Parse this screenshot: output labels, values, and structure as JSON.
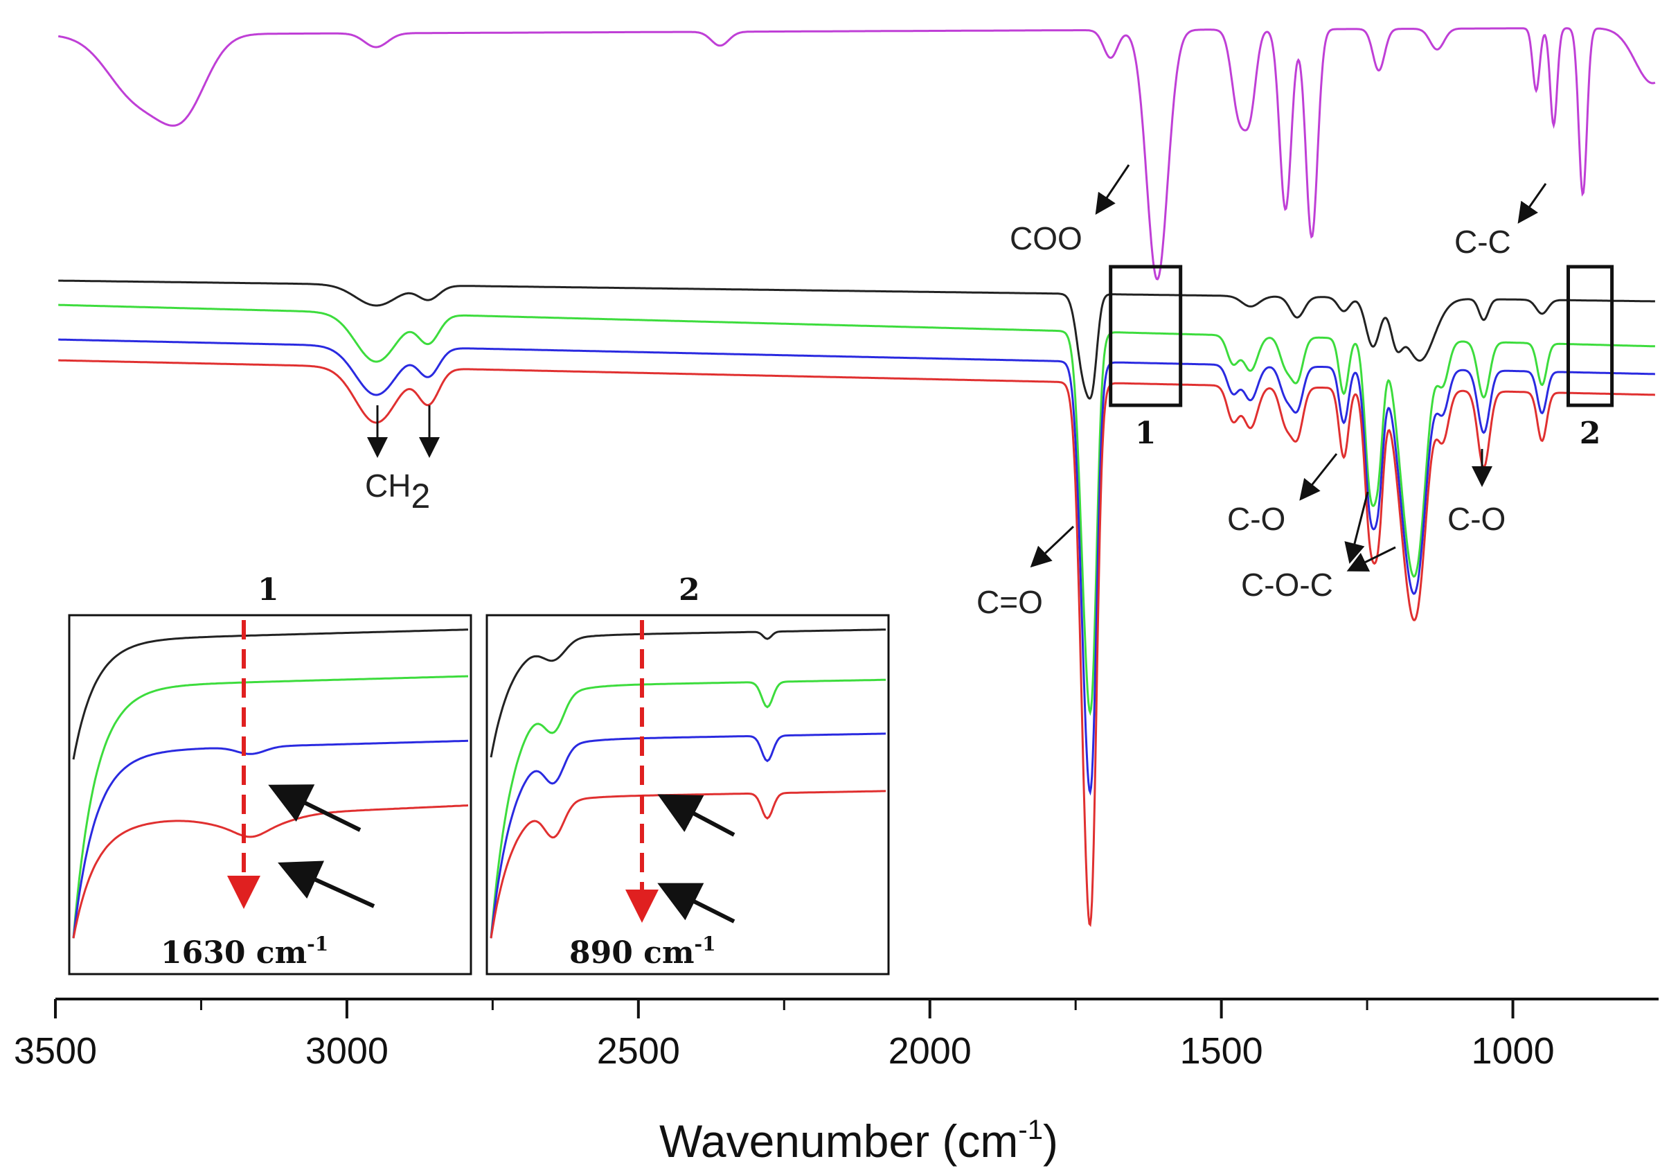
{
  "chart_data": {
    "type": "line",
    "title": "",
    "xlabel": "Wavenumber (cm",
    "xlabel_sup": "-1",
    "xlabel_tail": ")",
    "ylabel": "",
    "xlim": [
      3500,
      750
    ],
    "x_ticks": [
      3500,
      3000,
      2500,
      2000,
      1500,
      1000
    ],
    "x_tick_labels": [
      "3500",
      "3000",
      "2500",
      "2000",
      "1500",
      "1000"
    ],
    "series": [
      {
        "name": "magenta",
        "color": "#bf3fd6",
        "baseline": 0.03,
        "slope": -0.01,
        "bands": [
          [
            3360,
            0.09,
            50
          ],
          [
            3280,
            0.1,
            40
          ],
          [
            2950,
            0.02,
            20
          ],
          [
            2360,
            0.02,
            15
          ],
          [
            1690,
            0.04,
            12
          ],
          [
            1610,
            0.36,
            18
          ],
          [
            1470,
            0.12,
            12
          ],
          [
            1450,
            0.1,
            10
          ],
          [
            1390,
            0.26,
            10
          ],
          [
            1345,
            0.3,
            10
          ],
          [
            1230,
            0.06,
            10
          ],
          [
            1130,
            0.03,
            12
          ],
          [
            960,
            0.09,
            6
          ],
          [
            930,
            0.14,
            6
          ],
          [
            880,
            0.24,
            7
          ],
          [
            760,
            0.08,
            30
          ]
        ]
      },
      {
        "name": "black",
        "color": "#222222",
        "baseline": 0.385,
        "slope": 0.03,
        "bands": [
          [
            2950,
            0.03,
            35
          ],
          [
            2860,
            0.02,
            18
          ],
          [
            1735,
            0.12,
            12
          ],
          [
            1720,
            0.08,
            8
          ],
          [
            1450,
            0.015,
            15
          ],
          [
            1370,
            0.03,
            12
          ],
          [
            1290,
            0.02,
            10
          ],
          [
            1240,
            0.07,
            12
          ],
          [
            1200,
            0.05,
            10
          ],
          [
            1160,
            0.09,
            25
          ],
          [
            1050,
            0.03,
            8
          ],
          [
            950,
            0.02,
            10
          ]
        ]
      },
      {
        "name": "green",
        "color": "#3ddc3d",
        "baseline": 0.42,
        "slope": 0.06,
        "bands": [
          [
            2950,
            0.07,
            35
          ],
          [
            2860,
            0.04,
            18
          ],
          [
            1730,
            0.42,
            12
          ],
          [
            1720,
            0.2,
            8
          ],
          [
            1480,
            0.04,
            10
          ],
          [
            1450,
            0.05,
            12
          ],
          [
            1390,
            0.04,
            10
          ],
          [
            1370,
            0.06,
            10
          ],
          [
            1290,
            0.08,
            8
          ],
          [
            1245,
            0.2,
            9
          ],
          [
            1230,
            0.15,
            8
          ],
          [
            1180,
            0.23,
            18
          ],
          [
            1160,
            0.18,
            15
          ],
          [
            1120,
            0.06,
            10
          ],
          [
            1050,
            0.08,
            10
          ],
          [
            950,
            0.06,
            8
          ]
        ]
      },
      {
        "name": "blue",
        "color": "#2a2ae0",
        "baseline": 0.47,
        "slope": 0.05,
        "bands": [
          [
            2950,
            0.07,
            35
          ],
          [
            2860,
            0.04,
            18
          ],
          [
            1730,
            0.48,
            12
          ],
          [
            1720,
            0.22,
            8
          ],
          [
            1480,
            0.04,
            10
          ],
          [
            1450,
            0.05,
            12
          ],
          [
            1390,
            0.04,
            10
          ],
          [
            1370,
            0.06,
            10
          ],
          [
            1290,
            0.08,
            8
          ],
          [
            1245,
            0.19,
            9
          ],
          [
            1230,
            0.15,
            8
          ],
          [
            1180,
            0.22,
            18
          ],
          [
            1160,
            0.17,
            15
          ],
          [
            1120,
            0.06,
            10
          ],
          [
            1050,
            0.09,
            10
          ],
          [
            950,
            0.06,
            8
          ]
        ]
      },
      {
        "name": "red",
        "color": "#e03030",
        "baseline": 0.5,
        "slope": 0.05,
        "bands": [
          [
            2950,
            0.08,
            35
          ],
          [
            2860,
            0.05,
            18
          ],
          [
            1730,
            0.62,
            12
          ],
          [
            1720,
            0.26,
            8
          ],
          [
            1480,
            0.05,
            10
          ],
          [
            1450,
            0.06,
            12
          ],
          [
            1390,
            0.05,
            10
          ],
          [
            1370,
            0.07,
            10
          ],
          [
            1290,
            0.1,
            8
          ],
          [
            1245,
            0.2,
            9
          ],
          [
            1230,
            0.17,
            8
          ],
          [
            1180,
            0.22,
            18
          ],
          [
            1160,
            0.18,
            15
          ],
          [
            1120,
            0.07,
            10
          ],
          [
            1050,
            0.11,
            10
          ],
          [
            950,
            0.07,
            8
          ]
        ]
      }
    ],
    "annotations": [
      {
        "text": "COO",
        "x": 1610
      },
      {
        "text": "C-C",
        "x": 880
      },
      {
        "text": "CH",
        "sub": "2",
        "x": 2900
      },
      {
        "text": "C=O",
        "x": 1730
      },
      {
        "text": "C-O",
        "x": 1290
      },
      {
        "text": "C-O-C",
        "x": 1200
      },
      {
        "text": "C-O",
        "x": 1050
      }
    ],
    "boxes": [
      {
        "label": "1",
        "x_range": [
          1690,
          1570
        ]
      },
      {
        "label": "2",
        "x_range": [
          905,
          830
        ]
      }
    ],
    "insets": [
      {
        "label": "1",
        "marker_wavenumber": "1630 cm",
        "marker_sup": "-1"
      },
      {
        "label": "2",
        "marker_wavenumber": "890 cm",
        "marker_sup": "-1"
      }
    ],
    "marker_color": "#e02020",
    "arrow_color": "#111111"
  }
}
